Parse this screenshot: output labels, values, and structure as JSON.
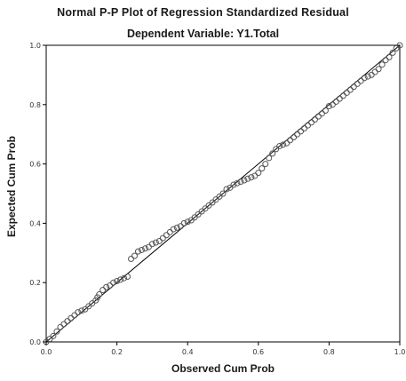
{
  "chart_data": {
    "type": "scatter",
    "title": "Normal P-P Plot of Regression Standardized Residual",
    "subtitle": "Dependent Variable: Y1.Total",
    "xlabel": "Observed Cum Prob",
    "ylabel": "Expected Cum Prob",
    "xlim": [
      0,
      1
    ],
    "ylim": [
      0,
      1
    ],
    "x_ticks": [
      "0.0",
      "0.2",
      "0.4",
      "0.6",
      "0.8",
      "1.0"
    ],
    "y_ticks": [
      "0.0",
      "0.2",
      "0.4",
      "0.6",
      "0.8",
      "1.0"
    ],
    "grid": false,
    "reference_line": [
      [
        0,
        0
      ],
      [
        1,
        1
      ]
    ],
    "point_color": "#555555",
    "line_color": "#000000",
    "points": [
      [
        0.0,
        0.0
      ],
      [
        0.01,
        0.01
      ],
      [
        0.02,
        0.02
      ],
      [
        0.03,
        0.035
      ],
      [
        0.04,
        0.05
      ],
      [
        0.05,
        0.06
      ],
      [
        0.06,
        0.07
      ],
      [
        0.07,
        0.08
      ],
      [
        0.08,
        0.09
      ],
      [
        0.09,
        0.1
      ],
      [
        0.1,
        0.105
      ],
      [
        0.11,
        0.11
      ],
      [
        0.12,
        0.12
      ],
      [
        0.13,
        0.13
      ],
      [
        0.14,
        0.14
      ],
      [
        0.145,
        0.15
      ],
      [
        0.15,
        0.16
      ],
      [
        0.16,
        0.175
      ],
      [
        0.17,
        0.185
      ],
      [
        0.18,
        0.19
      ],
      [
        0.19,
        0.2
      ],
      [
        0.2,
        0.205
      ],
      [
        0.21,
        0.21
      ],
      [
        0.22,
        0.215
      ],
      [
        0.23,
        0.22
      ],
      [
        0.24,
        0.28
      ],
      [
        0.25,
        0.29
      ],
      [
        0.26,
        0.305
      ],
      [
        0.27,
        0.31
      ],
      [
        0.28,
        0.315
      ],
      [
        0.29,
        0.32
      ],
      [
        0.3,
        0.33
      ],
      [
        0.31,
        0.335
      ],
      [
        0.32,
        0.34
      ],
      [
        0.33,
        0.35
      ],
      [
        0.34,
        0.36
      ],
      [
        0.35,
        0.37
      ],
      [
        0.36,
        0.38
      ],
      [
        0.37,
        0.385
      ],
      [
        0.38,
        0.39
      ],
      [
        0.39,
        0.4
      ],
      [
        0.4,
        0.405
      ],
      [
        0.41,
        0.41
      ],
      [
        0.42,
        0.42
      ],
      [
        0.43,
        0.43
      ],
      [
        0.44,
        0.44
      ],
      [
        0.45,
        0.45
      ],
      [
        0.46,
        0.46
      ],
      [
        0.47,
        0.47
      ],
      [
        0.48,
        0.48
      ],
      [
        0.49,
        0.49
      ],
      [
        0.5,
        0.5
      ],
      [
        0.51,
        0.515
      ],
      [
        0.52,
        0.52
      ],
      [
        0.53,
        0.53
      ],
      [
        0.54,
        0.535
      ],
      [
        0.55,
        0.54
      ],
      [
        0.56,
        0.545
      ],
      [
        0.57,
        0.55
      ],
      [
        0.58,
        0.555
      ],
      [
        0.59,
        0.56
      ],
      [
        0.6,
        0.57
      ],
      [
        0.61,
        0.585
      ],
      [
        0.62,
        0.6
      ],
      [
        0.63,
        0.62
      ],
      [
        0.64,
        0.635
      ],
      [
        0.65,
        0.65
      ],
      [
        0.66,
        0.66
      ],
      [
        0.67,
        0.665
      ],
      [
        0.68,
        0.67
      ],
      [
        0.69,
        0.68
      ],
      [
        0.7,
        0.69
      ],
      [
        0.71,
        0.7
      ],
      [
        0.72,
        0.71
      ],
      [
        0.73,
        0.72
      ],
      [
        0.74,
        0.73
      ],
      [
        0.75,
        0.74
      ],
      [
        0.76,
        0.75
      ],
      [
        0.77,
        0.76
      ],
      [
        0.78,
        0.77
      ],
      [
        0.79,
        0.78
      ],
      [
        0.8,
        0.795
      ],
      [
        0.81,
        0.8
      ],
      [
        0.82,
        0.81
      ],
      [
        0.83,
        0.82
      ],
      [
        0.84,
        0.83
      ],
      [
        0.85,
        0.84
      ],
      [
        0.86,
        0.85
      ],
      [
        0.87,
        0.86
      ],
      [
        0.88,
        0.87
      ],
      [
        0.89,
        0.88
      ],
      [
        0.9,
        0.89
      ],
      [
        0.91,
        0.895
      ],
      [
        0.92,
        0.9
      ],
      [
        0.93,
        0.91
      ],
      [
        0.94,
        0.92
      ],
      [
        0.95,
        0.935
      ],
      [
        0.96,
        0.95
      ],
      [
        0.97,
        0.96
      ],
      [
        0.98,
        0.975
      ],
      [
        0.99,
        0.99
      ],
      [
        1.0,
        1.0
      ]
    ]
  }
}
